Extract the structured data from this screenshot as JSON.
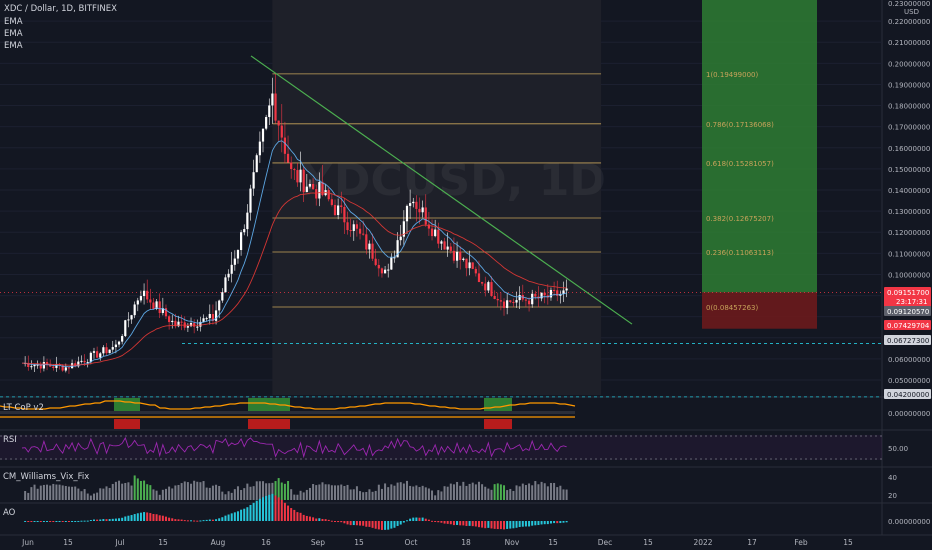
{
  "header": {
    "symbol_line": "XDC / Dollar, 1D, BITFINEX",
    "indicators": [
      "EMA",
      "EMA",
      "EMA"
    ]
  },
  "watermark": "XDCUSD, 1D",
  "price_axis": {
    "unit": "USD",
    "tick_labels": [
      "0.22000000",
      "0.21000000",
      "0.20000000",
      "0.19000000",
      "0.18000000",
      "0.17000000",
      "0.16000000",
      "0.15000000",
      "0.14000000",
      "0.13000000",
      "0.12000000",
      "0.11000000",
      "0.10000000",
      "0.06000000",
      "0.05000000"
    ],
    "top_label": "0.23000000",
    "badges": [
      {
        "label": "0.09151700",
        "sub": "23:17:31",
        "color": "#f23645"
      },
      {
        "label": "0.09120570",
        "color": "#5d606b"
      },
      {
        "label": "0.07429704",
        "color": "#f23645"
      },
      {
        "label": "0.06727300",
        "color": "#ffffff"
      },
      {
        "label": "0.04200000",
        "color": "#ffffff"
      }
    ]
  },
  "fib_levels": [
    {
      "label": "1(0.19499000)",
      "price": 0.19499
    },
    {
      "label": "0.786(0.17136068)",
      "price": 0.17136068
    },
    {
      "label": "0.618(0.15281057)",
      "price": 0.15281057
    },
    {
      "label": "0.382(0.12675207)",
      "price": 0.12675207
    },
    {
      "label": "0.236(0.11063113)",
      "price": 0.11063113
    },
    {
      "label": "0(0.08457263)",
      "price": 0.08457263
    }
  ],
  "x_axis": {
    "labels": [
      "Jun",
      "15",
      "Jul",
      "15",
      "Aug",
      "16",
      "Sep",
      "15",
      "Oct",
      "18",
      "Nov",
      "15",
      "Dec",
      "15",
      "2022",
      "17",
      "Feb",
      "15"
    ]
  },
  "panes": [
    {
      "title": "LT CoP v2",
      "axis_label": "0.00000000"
    },
    {
      "title": "RSI",
      "axis_label": "50.00"
    },
    {
      "title": "CM_Williams_Vix_Fix",
      "axis_label": "40",
      "axis_label2": "20"
    },
    {
      "title": "AO",
      "axis_label": "0.00000000"
    }
  ],
  "colors": {
    "background": "#131722",
    "up": "#ffffff",
    "down": "#f23645",
    "fib": "#c7a35a",
    "trendline": "#4caf50",
    "long_zone": "#2e7d32",
    "stop_zone": "#6b1a1c",
    "ema_fast": "#64b5f6",
    "ema_slow": "#e53935",
    "rsi": "#9c27b0"
  },
  "chart_data": {
    "type": "candlestick",
    "title": "XDC / Dollar, 1D, BITFINEX",
    "ylim": [
      0.042,
      0.23
    ],
    "price_keypoints": [
      [
        "Jun 1",
        0.058
      ],
      [
        "Jun 15",
        0.056
      ],
      [
        "Jul 1",
        0.066
      ],
      [
        "Jul 9",
        0.092
      ],
      [
        "Jul 20",
        0.076
      ],
      [
        "Aug 1",
        0.079
      ],
      [
        "Aug 10",
        0.118
      ],
      [
        "Aug 20",
        0.185
      ],
      [
        "Aug 26",
        0.148
      ],
      [
        "Sep 5",
        0.138
      ],
      [
        "Sep 15",
        0.122
      ],
      [
        "Sep 26",
        0.1
      ],
      [
        "Oct 3",
        0.138
      ],
      [
        "Oct 12",
        0.118
      ],
      [
        "Oct 25",
        0.098
      ],
      [
        "Nov 2",
        0.087
      ],
      [
        "Nov 15",
        0.089
      ],
      [
        "Nov 22",
        0.0915
      ]
    ],
    "fib_range": [
      0.08457263,
      0.19499
    ],
    "horizontal_levels": [
      0.067273,
      0.042
    ],
    "long_position": {
      "entry": 0.0915,
      "target": 0.23,
      "stop": 0.07429704
    }
  }
}
